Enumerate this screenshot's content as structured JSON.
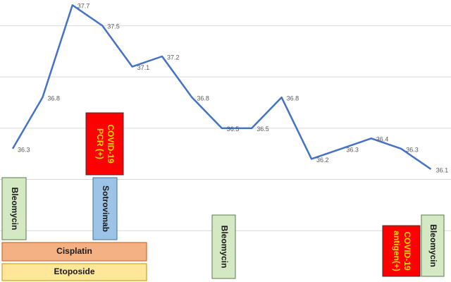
{
  "chart_data": {
    "type": "line",
    "categories": [
      null,
      null,
      null,
      null,
      null,
      null,
      null,
      null,
      null,
      null,
      null,
      null,
      null,
      null,
      null
    ],
    "series": [
      {
        "color": "#4472c4",
        "values": [
          36.3,
          36.8,
          37.7,
          37.5,
          37.1,
          37.2,
          36.8,
          36.5,
          36.5,
          36.8,
          36.2,
          36.3,
          36.4,
          36.3,
          36.1
        ]
      }
    ],
    "ylim": [
      35,
      37.75
    ],
    "gridlines": [
      35.5,
      36,
      36.5,
      37,
      37.5
    ],
    "grid": true,
    "annotations": [
      {
        "lines": [
          "Bleomycin"
        ],
        "color": "#d5e8c4",
        "border": "#5a7a48",
        "text_color": "#1a1a1a"
      },
      {
        "lines": [
          "COVID-19",
          "PCR (+)"
        ],
        "color": "#ff0000",
        "border": "#333333",
        "text_color": "#ffd700"
      },
      {
        "lines": [
          "Sotrovimab"
        ],
        "color": "#9dc3e6",
        "border": "#41719c",
        "text_color": "#1a1a1a"
      },
      {
        "lines": [
          "Cisplatin"
        ],
        "color": "#f4b183",
        "border": "#c55a11",
        "text_color": "#1a1a1a"
      },
      {
        "lines": [
          "Etoposide"
        ],
        "color": "#ffe699",
        "border": "#bf9000",
        "text_color": "#1a1a1a"
      },
      {
        "lines": [
          "Bleomycin"
        ],
        "color": "#d5e8c4",
        "border": "#5a7a48",
        "text_color": "#1a1a1a"
      },
      {
        "lines": [
          "COVID-19",
          "antigen(+)"
        ],
        "color": "#ff0000",
        "border": "#333333",
        "text_color": "#ffd700"
      },
      {
        "lines": [
          "Bleomycin"
        ],
        "color": "#d5e8c4",
        "border": "#5a7a48",
        "text_color": "#1a1a1a"
      }
    ]
  }
}
